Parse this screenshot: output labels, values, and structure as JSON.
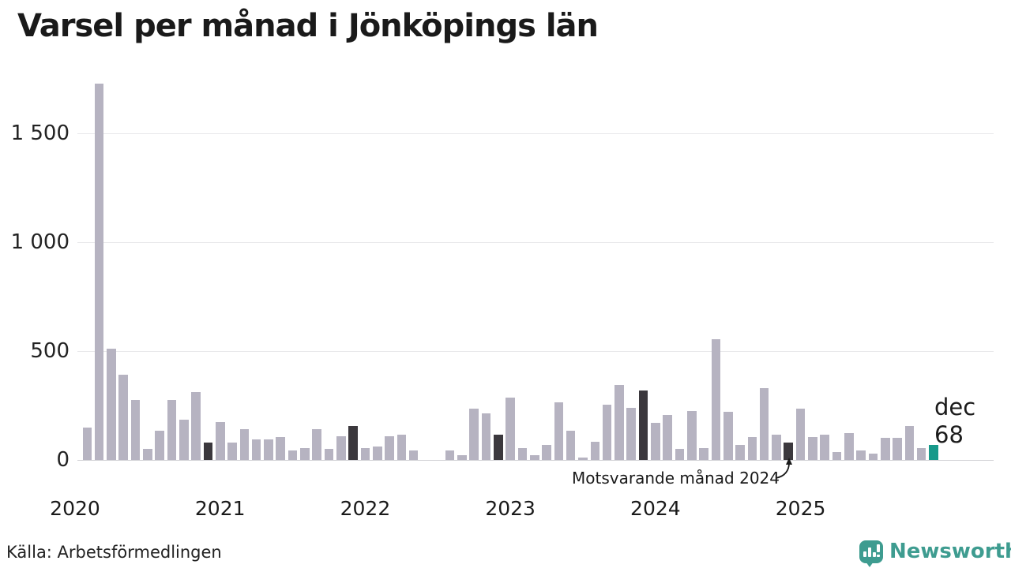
{
  "title": "Varsel per månad i Jönköpings län",
  "source": "Källa: Arbetsförmedlingen",
  "annotation": {
    "text": "Motsvarande månad 2024"
  },
  "current_label": {
    "line1": "dec",
    "line2": "68"
  },
  "logo": {
    "text": "Newsworthy"
  },
  "colors": {
    "bar": "#b6b3c1",
    "compare_bar": "#3b383d",
    "current_bar": "#17998a",
    "grid": "#e7e7ea",
    "axis_line": "#d0d0d4",
    "text": "#1a1a1a",
    "logo_teal": "#3e9c90"
  },
  "chart_data": {
    "type": "bar",
    "title": "Varsel per månad i Jönköpings län",
    "xlabel": "",
    "ylabel": "",
    "ylim": [
      0,
      1750
    ],
    "grid": true,
    "legend_position": "none",
    "yticks": [
      {
        "value": 0,
        "label": "0"
      },
      {
        "value": 500,
        "label": "500"
      },
      {
        "value": 1000,
        "label": "1 000"
      },
      {
        "value": 1500,
        "label": "1 500"
      }
    ],
    "year_ticks": [
      {
        "label": "2020",
        "month_index": -1
      },
      {
        "label": "2021",
        "month_index": 11
      },
      {
        "label": "2022",
        "month_index": 23
      },
      {
        "label": "2023",
        "month_index": 35
      },
      {
        "label": "2024",
        "month_index": 47
      },
      {
        "label": "2025",
        "month_index": 59
      }
    ],
    "series_note": "monthly layoff notices (varsel), feb 2020 - dec 2025; december bars highlighted dark, current month teal",
    "months": [
      {
        "label": "feb 2020",
        "value": 150,
        "kind": "normal"
      },
      {
        "label": "mar 2020",
        "value": 1727,
        "kind": "normal"
      },
      {
        "label": "apr 2020",
        "value": 510,
        "kind": "normal"
      },
      {
        "label": "maj 2020",
        "value": 390,
        "kind": "normal"
      },
      {
        "label": "jun 2020",
        "value": 275,
        "kind": "normal"
      },
      {
        "label": "jul 2020",
        "value": 50,
        "kind": "normal"
      },
      {
        "label": "aug 2020",
        "value": 135,
        "kind": "normal"
      },
      {
        "label": "sep 2020",
        "value": 275,
        "kind": "normal"
      },
      {
        "label": "okt 2020",
        "value": 185,
        "kind": "normal"
      },
      {
        "label": "nov 2020",
        "value": 310,
        "kind": "normal"
      },
      {
        "label": "dec 2020",
        "value": 80,
        "kind": "compare"
      },
      {
        "label": "jan 2021",
        "value": 175,
        "kind": "normal"
      },
      {
        "label": "feb 2021",
        "value": 80,
        "kind": "normal"
      },
      {
        "label": "mar 2021",
        "value": 140,
        "kind": "normal"
      },
      {
        "label": "apr 2021",
        "value": 95,
        "kind": "normal"
      },
      {
        "label": "maj 2021",
        "value": 95,
        "kind": "normal"
      },
      {
        "label": "jun 2021",
        "value": 105,
        "kind": "normal"
      },
      {
        "label": "jul 2021",
        "value": 45,
        "kind": "normal"
      },
      {
        "label": "aug 2021",
        "value": 55,
        "kind": "normal"
      },
      {
        "label": "sep 2021",
        "value": 140,
        "kind": "normal"
      },
      {
        "label": "okt 2021",
        "value": 50,
        "kind": "normal"
      },
      {
        "label": "nov 2021",
        "value": 110,
        "kind": "normal"
      },
      {
        "label": "dec 2021",
        "value": 155,
        "kind": "compare"
      },
      {
        "label": "jan 2022",
        "value": 55,
        "kind": "normal"
      },
      {
        "label": "feb 2022",
        "value": 60,
        "kind": "normal"
      },
      {
        "label": "mar 2022",
        "value": 110,
        "kind": "normal"
      },
      {
        "label": "apr 2022",
        "value": 115,
        "kind": "normal"
      },
      {
        "label": "maj 2022",
        "value": 45,
        "kind": "normal"
      },
      {
        "label": "jun 2022",
        "value": 0,
        "kind": "normal"
      },
      {
        "label": "jul 2022",
        "value": 0,
        "kind": "normal"
      },
      {
        "label": "aug 2022",
        "value": 45,
        "kind": "normal"
      },
      {
        "label": "sep 2022",
        "value": 20,
        "kind": "normal"
      },
      {
        "label": "okt 2022",
        "value": 235,
        "kind": "normal"
      },
      {
        "label": "nov 2022",
        "value": 215,
        "kind": "normal"
      },
      {
        "label": "dec 2022",
        "value": 115,
        "kind": "compare"
      },
      {
        "label": "jan 2023",
        "value": 285,
        "kind": "normal"
      },
      {
        "label": "feb 2023",
        "value": 55,
        "kind": "normal"
      },
      {
        "label": "mar 2023",
        "value": 20,
        "kind": "normal"
      },
      {
        "label": "apr 2023",
        "value": 70,
        "kind": "normal"
      },
      {
        "label": "maj 2023",
        "value": 265,
        "kind": "normal"
      },
      {
        "label": "jun 2023",
        "value": 135,
        "kind": "normal"
      },
      {
        "label": "jul 2023",
        "value": 10,
        "kind": "normal"
      },
      {
        "label": "aug 2023",
        "value": 85,
        "kind": "normal"
      },
      {
        "label": "sep 2023",
        "value": 255,
        "kind": "normal"
      },
      {
        "label": "okt 2023",
        "value": 345,
        "kind": "normal"
      },
      {
        "label": "nov 2023",
        "value": 240,
        "kind": "normal"
      },
      {
        "label": "dec 2023",
        "value": 320,
        "kind": "compare"
      },
      {
        "label": "jan 2024",
        "value": 170,
        "kind": "normal"
      },
      {
        "label": "feb 2024",
        "value": 205,
        "kind": "normal"
      },
      {
        "label": "mar 2024",
        "value": 50,
        "kind": "normal"
      },
      {
        "label": "apr 2024",
        "value": 225,
        "kind": "normal"
      },
      {
        "label": "maj 2024",
        "value": 55,
        "kind": "normal"
      },
      {
        "label": "jun 2024",
        "value": 555,
        "kind": "normal"
      },
      {
        "label": "jul 2024",
        "value": 220,
        "kind": "normal"
      },
      {
        "label": "aug 2024",
        "value": 70,
        "kind": "normal"
      },
      {
        "label": "sep 2024",
        "value": 105,
        "kind": "normal"
      },
      {
        "label": "okt 2024",
        "value": 330,
        "kind": "normal"
      },
      {
        "label": "nov 2024",
        "value": 115,
        "kind": "normal"
      },
      {
        "label": "dec 2024",
        "value": 80,
        "kind": "compare"
      },
      {
        "label": "jan 2025",
        "value": 235,
        "kind": "normal"
      },
      {
        "label": "feb 2025",
        "value": 105,
        "kind": "normal"
      },
      {
        "label": "mar 2025",
        "value": 115,
        "kind": "normal"
      },
      {
        "label": "apr 2025",
        "value": 35,
        "kind": "normal"
      },
      {
        "label": "maj 2025",
        "value": 125,
        "kind": "normal"
      },
      {
        "label": "jun 2025",
        "value": 45,
        "kind": "normal"
      },
      {
        "label": "jul 2025",
        "value": 30,
        "kind": "normal"
      },
      {
        "label": "aug 2025",
        "value": 100,
        "kind": "normal"
      },
      {
        "label": "sep 2025",
        "value": 100,
        "kind": "normal"
      },
      {
        "label": "okt 2025",
        "value": 155,
        "kind": "normal"
      },
      {
        "label": "nov 2025",
        "value": 55,
        "kind": "normal"
      },
      {
        "label": "dec 2025",
        "value": 68,
        "kind": "current"
      }
    ]
  }
}
